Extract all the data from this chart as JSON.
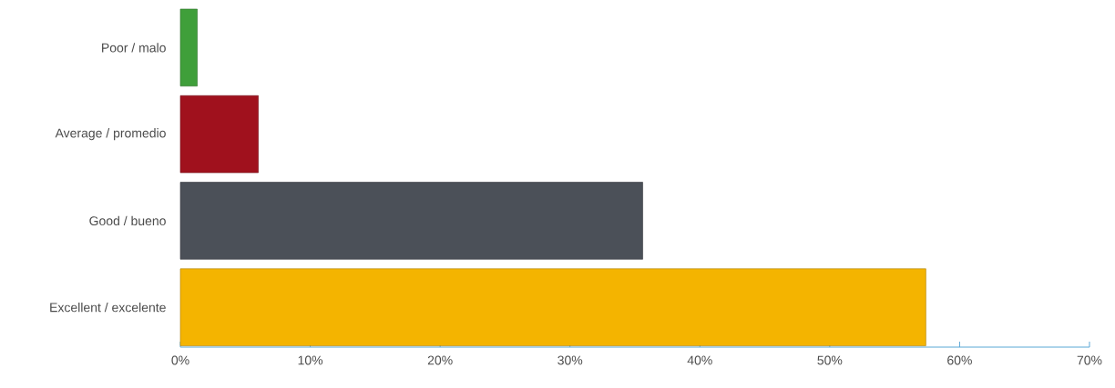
{
  "chart_data": {
    "type": "bar",
    "orientation": "horizontal",
    "categories": [
      "Poor / malo",
      "Average / promedio",
      "Good / bueno",
      "Excellent / excelente"
    ],
    "values": [
      1.3,
      6.0,
      35.6,
      57.4
    ],
    "colors": [
      "#3f9f3a",
      "#a0111d",
      "#4b5058",
      "#f4b400"
    ],
    "xlim": [
      0,
      70
    ],
    "xticks": [
      {
        "value": 0,
        "label": "0%"
      },
      {
        "value": 10,
        "label": "10%"
      },
      {
        "value": 20,
        "label": "20%"
      },
      {
        "value": 30,
        "label": "30%"
      },
      {
        "value": 40,
        "label": "40%"
      },
      {
        "value": 50,
        "label": "50%"
      },
      {
        "value": 60,
        "label": "60%"
      },
      {
        "value": 70,
        "label": "70%"
      }
    ]
  }
}
